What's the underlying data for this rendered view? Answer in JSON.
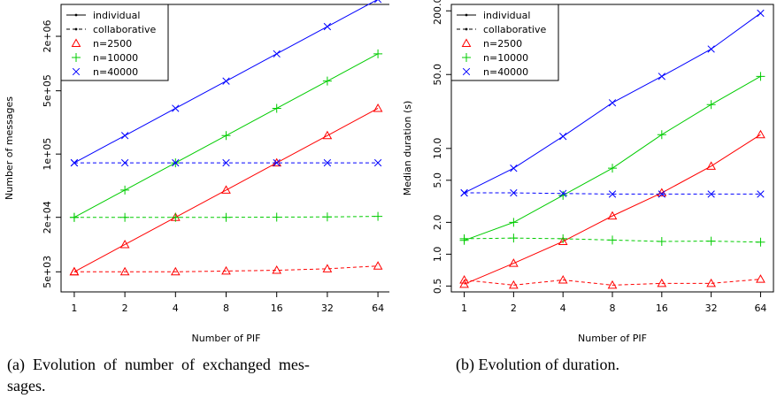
{
  "captions": {
    "a": "(a) Evolution of number of exchanged mes-sages.",
    "a_line1": "(a)  Evolution  of  number  of  exchanged  mes-",
    "a_line2": "sages.",
    "b": "(b) Evolution of duration."
  },
  "colors": {
    "n=2500": "#ff0000",
    "n=10000": "#00cc00",
    "n=40000": "#0000ff"
  },
  "legend_entries": [
    {
      "label": "individual",
      "style": "solid line"
    },
    {
      "label": "collaborative",
      "style": "dashed line"
    },
    {
      "label": "n=2500",
      "marker": "triangle",
      "color": "#ff0000"
    },
    {
      "label": "n=10000",
      "marker": "plus",
      "color": "#00cc00"
    },
    {
      "label": "n=40000",
      "marker": "cross",
      "color": "#0000ff"
    }
  ],
  "chart_data": [
    {
      "type": "line",
      "xlabel": "Number of PIF",
      "ylabel": "Number of messages",
      "x_scale": "log2",
      "y_scale": "log",
      "categories": [
        "1",
        "2",
        "4",
        "8",
        "16",
        "32",
        "64"
      ],
      "y_ticks": [
        "5e+03",
        "2e+04",
        "1e+05",
        "5e+05",
        "2e+06"
      ],
      "y_tick_values": [
        5000,
        20000,
        100000,
        500000,
        2000000
      ],
      "ylim": [
        3000,
        4500000
      ],
      "legend_position": "top-left",
      "series": [
        {
          "name": "n=2500",
          "mode": "individual",
          "values": [
            5000,
            10000,
            20000,
            40000,
            80000,
            160000,
            320000
          ]
        },
        {
          "name": "n=2500",
          "mode": "collaborative",
          "values": [
            5000,
            5000,
            5000,
            5100,
            5200,
            5400,
            5800
          ]
        },
        {
          "name": "n=10000",
          "mode": "individual",
          "values": [
            20000,
            40000,
            80000,
            160000,
            320000,
            640000,
            1280000
          ]
        },
        {
          "name": "n=10000",
          "mode": "collaborative",
          "values": [
            20000,
            20000,
            20000,
            20000,
            20100,
            20200,
            20500
          ]
        },
        {
          "name": "n=40000",
          "mode": "individual",
          "values": [
            80000,
            160000,
            320000,
            640000,
            1280000,
            2560000,
            5120000
          ]
        },
        {
          "name": "n=40000",
          "mode": "collaborative",
          "values": [
            80000,
            80000,
            80000,
            80000,
            80000,
            80000,
            80000
          ]
        }
      ]
    },
    {
      "type": "line",
      "xlabel": "Number of PIF",
      "ylabel": "Median duration (s)",
      "x_scale": "log2",
      "y_scale": "log",
      "categories": [
        "1",
        "2",
        "4",
        "8",
        "16",
        "32",
        "64"
      ],
      "y_ticks": [
        "0.5",
        "1.0",
        "2.0",
        "5.0",
        "10.0",
        "50.0",
        "200.0"
      ],
      "y_tick_values": [
        0.5,
        1,
        2,
        5,
        10,
        50,
        200
      ],
      "ylim": [
        0.44,
        230
      ],
      "legend_position": "top-left",
      "series": [
        {
          "name": "n=2500",
          "mode": "individual",
          "values": [
            0.52,
            0.82,
            1.32,
            2.3,
            3.8,
            6.8,
            13.5
          ]
        },
        {
          "name": "n=2500",
          "mode": "collaborative",
          "values": [
            0.57,
            0.51,
            0.57,
            0.51,
            0.53,
            0.53,
            0.58
          ]
        },
        {
          "name": "n=10000",
          "mode": "individual",
          "values": [
            1.35,
            2.0,
            3.6,
            6.5,
            13.5,
            26,
            48
          ]
        },
        {
          "name": "n=10000",
          "mode": "collaborative",
          "values": [
            1.4,
            1.42,
            1.4,
            1.36,
            1.32,
            1.33,
            1.3
          ]
        },
        {
          "name": "n=40000",
          "mode": "individual",
          "values": [
            3.8,
            6.5,
            13,
            27,
            48,
            87,
            190
          ]
        },
        {
          "name": "n=40000",
          "mode": "collaborative",
          "values": [
            3.8,
            3.8,
            3.75,
            3.7,
            3.7,
            3.7,
            3.7
          ]
        }
      ]
    }
  ]
}
